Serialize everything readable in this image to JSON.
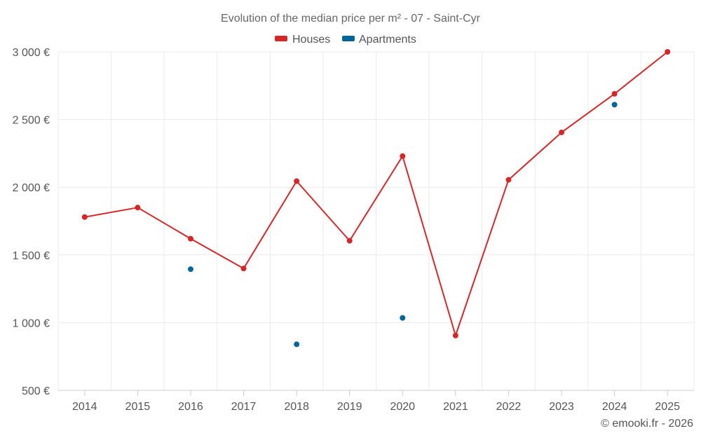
{
  "chart_data": {
    "type": "line",
    "title": "Evolution of the median price per m² - 07 - Saint-Cyr",
    "categories": [
      "2014",
      "2015",
      "2016",
      "2017",
      "2018",
      "2019",
      "2020",
      "2021",
      "2022",
      "2023",
      "2024",
      "2025"
    ],
    "ylim": [
      500,
      3000
    ],
    "yticks": [
      500,
      1000,
      1500,
      2000,
      2500,
      3000
    ],
    "ytick_labels": [
      "500 €",
      "1 000 €",
      "1 500 €",
      "2 000 €",
      "2 500 €",
      "3 000 €"
    ],
    "grid": true,
    "legend_position": "top-center",
    "series": [
      {
        "name": "Houses",
        "color": "#d62728",
        "values": [
          1780,
          1850,
          1620,
          1400,
          2045,
          1605,
          2230,
          905,
          2055,
          2405,
          2690,
          3000
        ]
      },
      {
        "name": "Apartments",
        "color": "#006699",
        "values": [
          null,
          null,
          1395,
          null,
          840,
          null,
          1035,
          null,
          null,
          null,
          2610,
          null
        ]
      }
    ],
    "credit": "© emooki.fr - 2026"
  }
}
